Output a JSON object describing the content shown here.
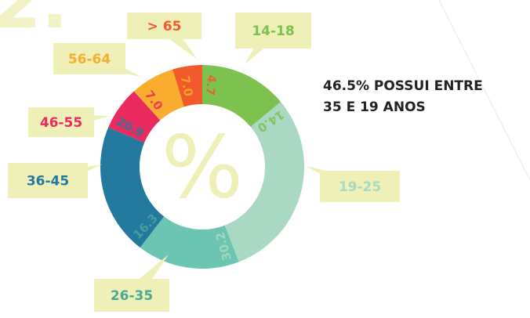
{
  "step_number": "2.",
  "chart_data": {
    "type": "donut",
    "title_lines": [
      "46.5% POSSUI ENTRE",
      "35 E 19 ANOS"
    ],
    "center_label": "%",
    "categories": [
      "14-18",
      "19-25",
      "26-35",
      "36-45",
      "46-55",
      "56-64",
      "> 65"
    ],
    "values": [
      14.0,
      30.2,
      16.3,
      20.9,
      7.0,
      7.0,
      4.7
    ],
    "value_labels": [
      "14.0",
      "30.2",
      "16.3",
      "20.9",
      "7.0",
      "7.0",
      "4.7"
    ],
    "colors": [
      "#7dc14f",
      "#a9d9c2",
      "#6cc5b3",
      "#237a9e",
      "#ea2b5f",
      "#f8ad2e",
      "#f15a2b"
    ],
    "label_colors": [
      "#7dc14f",
      "#a9d9c2",
      "#4aa89a",
      "#237a9e",
      "#ea2b5f",
      "#f8ad2e",
      "#f15a2b"
    ]
  }
}
